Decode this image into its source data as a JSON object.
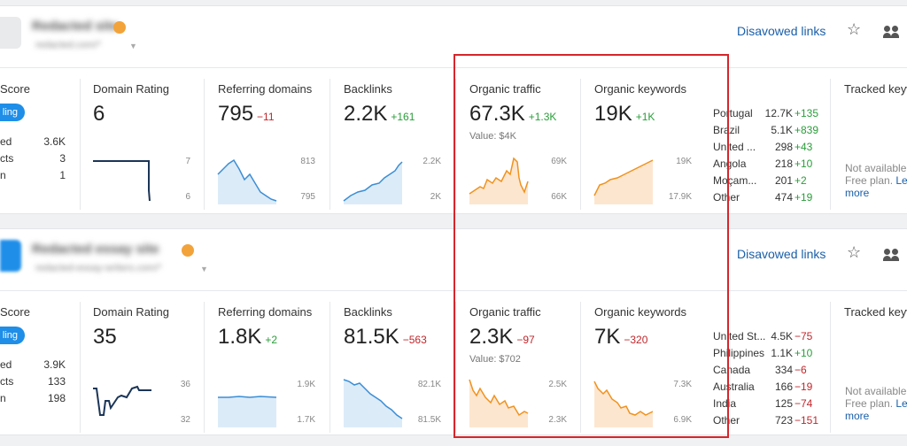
{
  "projects": [
    {
      "site_name": "Redacted site",
      "site_url": "redacted.com/*",
      "disavowed_links_label": "Disavowed links",
      "score": {
        "title": "Score",
        "badge": "ling",
        "rows": [
          {
            "label": "ed",
            "value": "3.6K"
          },
          {
            "label": "cts",
            "value": "3"
          },
          {
            "label": "n",
            "value": "1"
          }
        ]
      },
      "domain_rating": {
        "title": "Domain Rating",
        "value": "6",
        "axis_top": "7",
        "axis_bottom": "6"
      },
      "referring_domains": {
        "title": "Referring domains",
        "value": "795",
        "delta": "−11",
        "axis_top": "813",
        "axis_bottom": "795"
      },
      "backlinks": {
        "title": "Backlinks",
        "value": "2.2K",
        "delta": "+161",
        "axis_top": "2.2K",
        "axis_bottom": "2K"
      },
      "organic_traffic": {
        "title": "Organic traffic",
        "value": "67.3K",
        "delta": "+1.3K",
        "value_label": "Value: $4K",
        "axis_top": "69K",
        "axis_bottom": "66K"
      },
      "organic_keywords": {
        "title": "Organic keywords",
        "value": "19K",
        "delta": "+1K",
        "axis_top": "19K",
        "axis_bottom": "17.9K"
      },
      "countries": [
        {
          "country": "Portugal",
          "value": "12.7K",
          "delta": "+135"
        },
        {
          "country": "Brazil",
          "value": "5.1K",
          "delta": "+839"
        },
        {
          "country": "United ...",
          "value": "298",
          "delta": "+43"
        },
        {
          "country": "Angola",
          "value": "218",
          "delta": "+10"
        },
        {
          "country": "Moçam...",
          "value": "201",
          "delta": "+2"
        },
        {
          "country": "Other",
          "value": "474",
          "delta": "+19"
        }
      ],
      "tracked": {
        "title": "Tracked keywords",
        "line1": "Not available",
        "line2": "Free plan.",
        "learn": "Learn",
        "more": "more"
      }
    },
    {
      "site_name": "Redacted essay site",
      "site_url": "redacted-essay-writers.com/*",
      "disavowed_links_label": "Disavowed links",
      "score": {
        "title": "Score",
        "badge": "ling",
        "rows": [
          {
            "label": "ed",
            "value": "3.9K"
          },
          {
            "label": "cts",
            "value": "133"
          },
          {
            "label": "n",
            "value": "198"
          }
        ]
      },
      "domain_rating": {
        "title": "Domain Rating",
        "value": "35",
        "axis_top": "36",
        "axis_bottom": "32"
      },
      "referring_domains": {
        "title": "Referring domains",
        "value": "1.8K",
        "delta": "+2",
        "axis_top": "1.9K",
        "axis_bottom": "1.7K"
      },
      "backlinks": {
        "title": "Backlinks",
        "value": "81.5K",
        "delta": "−563",
        "axis_top": "82.1K",
        "axis_bottom": "81.5K"
      },
      "organic_traffic": {
        "title": "Organic traffic",
        "value": "2.3K",
        "delta": "−97",
        "value_label": "Value: $702",
        "axis_top": "2.5K",
        "axis_bottom": "2.3K"
      },
      "organic_keywords": {
        "title": "Organic keywords",
        "value": "7K",
        "delta": "−320",
        "axis_top": "7.3K",
        "axis_bottom": "6.9K"
      },
      "countries": [
        {
          "country": "United St...",
          "value": "4.5K",
          "delta": "−75"
        },
        {
          "country": "Philippines",
          "value": "1.1K",
          "delta": "+10"
        },
        {
          "country": "Canada",
          "value": "334",
          "delta": "−6"
        },
        {
          "country": "Australia",
          "value": "166",
          "delta": "−19"
        },
        {
          "country": "India",
          "value": "125",
          "delta": "−74"
        },
        {
          "country": "Other",
          "value": "723",
          "delta": "−151"
        }
      ],
      "tracked": {
        "title": "Tracked keywords",
        "line1": "Not available",
        "line2": "Free plan.",
        "learn": "Learn",
        "more": "more"
      }
    }
  ],
  "colors": {
    "accent_blue": "#1e8ee8",
    "link": "#1a5fa9",
    "traffic_orange": "#f0921e",
    "positive": "#2a9d3a",
    "negative": "#c0262b",
    "highlight_box": "#d6262b"
  },
  "icons": {
    "star": "star-icon",
    "users": "users-icon"
  }
}
